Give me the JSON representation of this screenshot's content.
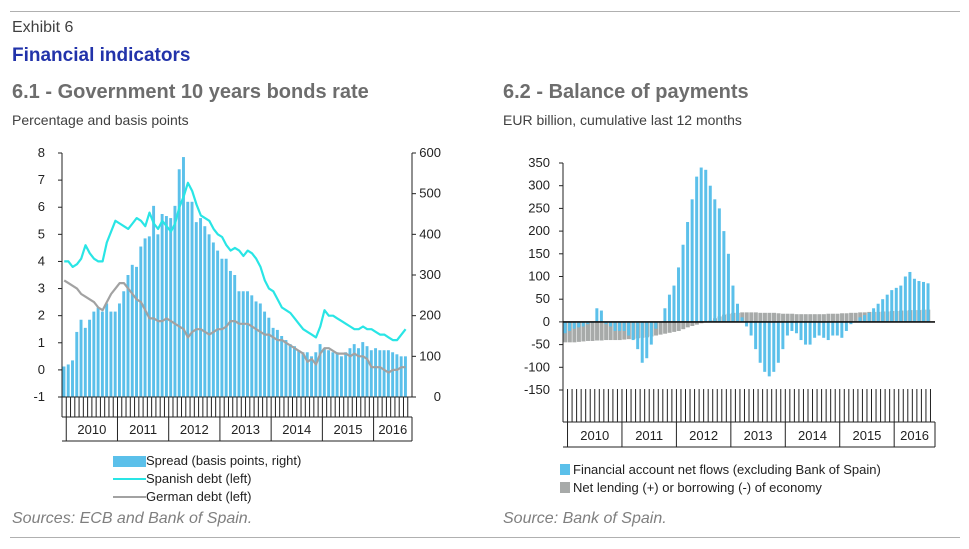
{
  "exhibit": "Exhibit 6",
  "title": "Financial indicators",
  "left": {
    "subtitle": "6.1 -  Government 10 years bonds rate",
    "unit": "Percentage and basis points",
    "source": "Sources: ECB and Bank of Spain.",
    "legend": [
      "Spread (basis points, right)",
      "Spanish debt (left)",
      "German debt (left)"
    ]
  },
  "right": {
    "subtitle": "6.2 -  Balance of payments",
    "unit": "EUR billion, cumulative last 12 months",
    "source": "Source: Bank of Spain.",
    "legend": [
      "Financial account net flows (excluding Bank of Spain)",
      "Net lending (+) or borrowing (-) of economy"
    ]
  },
  "colors": {
    "bar_blue": "#5bc0ea",
    "line_cyan": "#29e5e5",
    "line_gray": "#a2a2a2",
    "bar_gray": "#a7aaa9",
    "title_blue": "#2233aa"
  },
  "chart_data": [
    {
      "type": "bar+line",
      "years": [
        "2010",
        "2011",
        "2012",
        "2013",
        "2014",
        "2015",
        "2016"
      ],
      "x_start": 2009.917,
      "x_end": 2016.75,
      "ylim_left": [
        -1,
        8
      ],
      "yticks_left": [
        "8",
        "7",
        "6",
        "5",
        "4",
        "3",
        "2",
        "1",
        "0",
        "-1"
      ],
      "ylim_right": [
        0,
        600
      ],
      "yticks_right": [
        "600",
        "500",
        "400",
        "300",
        "200",
        "100",
        "0"
      ],
      "series": [
        {
          "name": "Spread (basis points, right)",
          "axis": "right",
          "kind": "bar",
          "values": [
            75,
            80,
            90,
            160,
            190,
            170,
            190,
            210,
            220,
            210,
            230,
            210,
            210,
            230,
            260,
            300,
            325,
            320,
            370,
            390,
            395,
            470,
            400,
            450,
            445,
            440,
            470,
            560,
            590,
            480,
            480,
            430,
            440,
            420,
            400,
            380,
            360,
            340,
            340,
            310,
            300,
            260,
            260,
            260,
            250,
            235,
            230,
            210,
            195,
            170,
            165,
            150,
            140,
            130,
            125,
            115,
            110,
            110,
            100,
            110,
            130,
            120,
            115,
            110,
            110,
            100,
            110,
            120,
            130,
            120,
            135,
            125,
            115,
            120,
            115,
            115,
            115,
            110,
            105,
            100,
            100
          ]
        },
        {
          "name": "Spanish debt (left)",
          "axis": "left",
          "kind": "line",
          "values": [
            4.0,
            4.0,
            3.8,
            3.9,
            4.1,
            4.6,
            4.3,
            4.1,
            4.0,
            4.0,
            4.7,
            5.1,
            5.5,
            5.4,
            5.3,
            5.2,
            5.4,
            5.6,
            5.5,
            5.3,
            5.8,
            5.4,
            5.2,
            5.5,
            5.3,
            5.1,
            5.4,
            6.0,
            6.4,
            6.9,
            6.6,
            6.1,
            5.7,
            5.6,
            5.5,
            5.2,
            5.0,
            4.9,
            4.6,
            4.4,
            4.5,
            4.4,
            4.2,
            4.4,
            4.3,
            4.1,
            3.8,
            3.3,
            3.0,
            2.9,
            2.6,
            2.3,
            2.2,
            2.1,
            1.9,
            1.7,
            1.5,
            1.4,
            1.3,
            1.2,
            1.6,
            2.2,
            2.0,
            2.0,
            1.9,
            1.8,
            1.7,
            1.6,
            1.5,
            1.5,
            1.6,
            1.5,
            1.5,
            1.4,
            1.3,
            1.3,
            1.2,
            1.1,
            1.1,
            1.3,
            1.5
          ]
        },
        {
          "name": "German debt (left)",
          "axis": "left",
          "kind": "line",
          "values": [
            3.3,
            3.2,
            3.1,
            3.0,
            2.8,
            2.7,
            2.6,
            2.5,
            2.3,
            2.2,
            2.5,
            2.8,
            3.0,
            3.2,
            3.2,
            3.0,
            2.8,
            2.6,
            2.5,
            2.2,
            1.9,
            1.9,
            1.8,
            1.8,
            1.9,
            1.8,
            1.7,
            1.6,
            1.5,
            1.2,
            1.4,
            1.5,
            1.5,
            1.4,
            1.3,
            1.4,
            1.5,
            1.5,
            1.6,
            1.8,
            1.8,
            1.7,
            1.7,
            1.7,
            1.6,
            1.5,
            1.4,
            1.3,
            1.3,
            1.2,
            1.1,
            1.1,
            1.0,
            0.9,
            0.8,
            0.7,
            0.6,
            0.3,
            0.4,
            0.2,
            0.6,
            0.8,
            0.8,
            0.7,
            0.6,
            0.6,
            0.6,
            0.5,
            0.6,
            0.5,
            0.5,
            0.4,
            0.1,
            0.1,
            0.1,
            0.0,
            -0.1,
            0.0,
            0.0,
            0.1,
            0.1
          ]
        }
      ],
      "title": "6.1 -  Government 10 years bonds rate"
    },
    {
      "type": "bar",
      "years": [
        "2010",
        "2011",
        "2012",
        "2013",
        "2014",
        "2015",
        "2016"
      ],
      "x_start": 2009.917,
      "x_end": 2016.75,
      "ylim": [
        -150,
        350
      ],
      "yticks": [
        "350",
        "300",
        "250",
        "200",
        "150",
        "100",
        "50",
        "0",
        "-50",
        "-100",
        "-150"
      ],
      "series": [
        {
          "name": "Financial account net flows (excluding Bank of Spain)",
          "values": [
            -25,
            -20,
            -15,
            -12,
            -10,
            -5,
            -2,
            30,
            25,
            -5,
            -10,
            -20,
            -20,
            -20,
            -30,
            -40,
            -60,
            -90,
            -80,
            -50,
            -15,
            0,
            30,
            60,
            80,
            120,
            170,
            220,
            270,
            320,
            340,
            335,
            300,
            270,
            250,
            200,
            150,
            80,
            40,
            10,
            -10,
            -30,
            -60,
            -90,
            -110,
            -120,
            -110,
            -90,
            -60,
            -30,
            -20,
            -25,
            -40,
            -50,
            -50,
            -35,
            -30,
            -35,
            -40,
            -30,
            -30,
            -35,
            -20,
            -5,
            0,
            10,
            15,
            20,
            30,
            40,
            50,
            60,
            70,
            75,
            80,
            100,
            110,
            95,
            90,
            88,
            85
          ]
        },
        {
          "name": "Net lending (+) or borrowing (-) of economy",
          "values": [
            -45,
            -45,
            -45,
            -44,
            -43,
            -42,
            -42,
            -41,
            -41,
            -40,
            -40,
            -40,
            -40,
            -39,
            -38,
            -38,
            -36,
            -35,
            -34,
            -32,
            -30,
            -28,
            -26,
            -24,
            -22,
            -20,
            -16,
            -12,
            -9,
            -6,
            -3,
            0,
            4,
            8,
            12,
            16,
            18,
            20,
            20,
            21,
            21,
            21,
            21,
            20,
            20,
            20,
            20,
            19,
            18,
            18,
            18,
            17,
            17,
            17,
            17,
            17,
            17,
            17,
            18,
            18,
            18,
            19,
            19,
            20,
            20,
            21,
            21,
            22,
            22,
            22,
            23,
            23,
            24,
            24,
            25,
            25,
            26,
            26,
            26,
            27,
            27
          ]
        }
      ],
      "title": "6.2 -  Balance of payments"
    }
  ]
}
